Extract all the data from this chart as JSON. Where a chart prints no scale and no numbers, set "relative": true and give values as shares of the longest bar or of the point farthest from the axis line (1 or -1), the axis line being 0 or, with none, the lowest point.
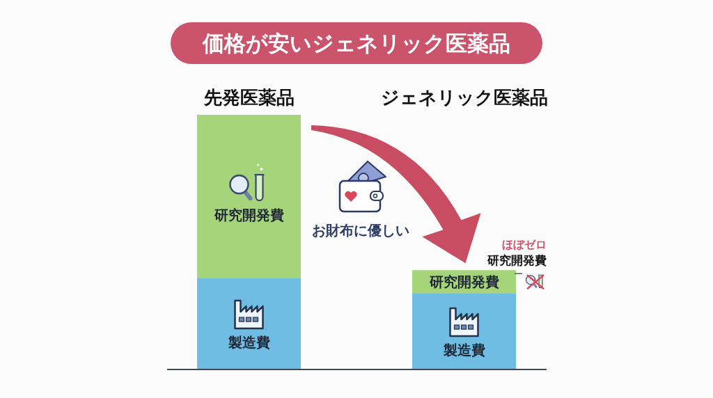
{
  "chart_data": {
    "type": "bar",
    "title": "価格が安いジェネリック医薬品",
    "categories": [
      "先発医薬品",
      "ジェネリック医薬品"
    ],
    "series": [
      {
        "name": "製造費",
        "color": "#6fbde3",
        "values": [
          0.36,
          0.3
        ]
      },
      {
        "name": "研究開発費",
        "color": "#a5d47b",
        "values": [
          0.64,
          0.09
        ]
      }
    ],
    "stacked": true,
    "relative": true,
    "annotations": [
      "お財布に優しい",
      "ほぼゼロ",
      "研究開発費"
    ]
  }
}
